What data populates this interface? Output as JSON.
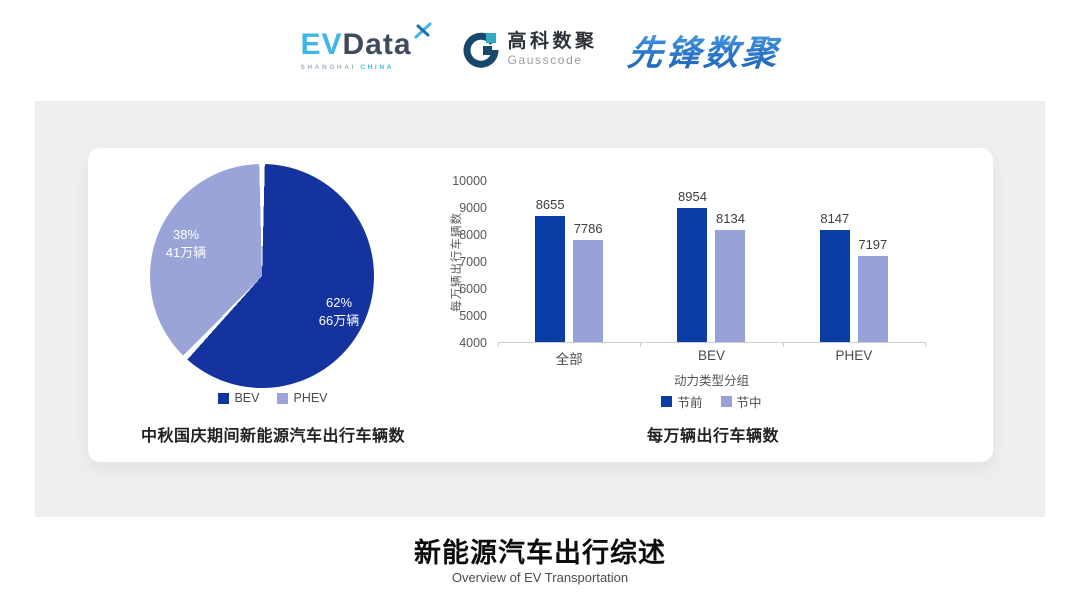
{
  "header": {
    "evdata_logo": {
      "ev": "EV",
      "data": "Data",
      "sub_left": "SHANGHAI",
      "sub_right": "CHINA"
    },
    "gausscode_logo": {
      "cn": "高科数聚",
      "en": "Gausscode"
    },
    "xianfeng_logo": {
      "text": "先锋数聚"
    }
  },
  "colors": {
    "dark_blue": "#0b3da6",
    "light_blue": "#97a2d8",
    "pie_dark": "#15339e",
    "pie_light": "#9aa4d9",
    "band_gray": "#efefef"
  },
  "chart_data": [
    {
      "type": "pie",
      "title": "中秋国庆期间新能源汽车出行车辆数",
      "slices": [
        {
          "label": "BEV",
          "percent": 62,
          "percent_label": "62%",
          "value_label": "66万辆",
          "color": "#15339e"
        },
        {
          "label": "PHEV",
          "percent": 38,
          "percent_label": "38%",
          "value_label": "41万辆",
          "color": "#9aa4d9"
        }
      ],
      "start_angle_deg": 0,
      "direction": "clockwise",
      "legend_position": "bottom"
    },
    {
      "type": "bar",
      "title": "每万辆出行车辆数",
      "categories": [
        "全部",
        "BEV",
        "PHEV"
      ],
      "series": [
        {
          "name": "节前",
          "values": [
            8655,
            8954,
            8147
          ],
          "color": "#0b3da6"
        },
        {
          "name": "节中",
          "values": [
            7786,
            8134,
            7197
          ],
          "color": "#97a2d8"
        }
      ],
      "xlabel": "动力类型分组",
      "ylabel": "每万辆出行车辆数",
      "ylim": [
        4000,
        10000
      ],
      "ytick_step": 1000,
      "grid": false,
      "legend_position": "bottom"
    }
  ],
  "footer": {
    "title": "新能源汽车出行综述",
    "subtitle": "Overview of EV Transportation"
  }
}
